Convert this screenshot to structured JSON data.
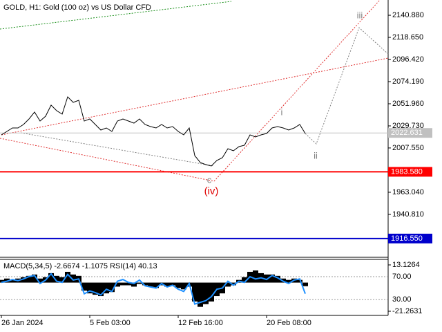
{
  "chart_data": [
    {
      "type": "line",
      "title": "GOLD, H1:  Gold (100 oz) vs US Dollar CFD",
      "categories": [
        "26 Jan 2024",
        null,
        null,
        null,
        null,
        null,
        null,
        null,
        null,
        null,
        null,
        null,
        null,
        null,
        null,
        null,
        "5 Feb 03:00",
        null,
        null,
        null,
        null,
        null,
        null,
        null,
        null,
        null,
        null,
        null,
        null,
        null,
        null,
        null,
        "12 Feb 16:00",
        null,
        null,
        null,
        null,
        null,
        null,
        null,
        null,
        null,
        null,
        null,
        null,
        null,
        null,
        null,
        "20 Feb 08:00",
        null,
        null,
        null,
        null,
        null,
        null,
        null
      ],
      "values": [
        2020.7,
        2024.17,
        2027.64,
        2027.64,
        2031.12,
        2036.67,
        2043.62,
        2034.59,
        2039.45,
        2050.57,
        2045.01,
        2041.54,
        2058.91,
        2053.35,
        2055.43,
        2034.59,
        2036.67,
        2031.12,
        2025.56,
        2027.64,
        2024.17,
        2034.59,
        2036.67,
        2034.59,
        2032.51,
        2036.67,
        2031.12,
        2029.03,
        2027.64,
        2031.12,
        2027.64,
        2029.03,
        2024.17,
        2020.7,
        2027.64,
        1999.86,
        1992.91,
        1990.82,
        1989.44,
        1994.99,
        1997.77,
        2006.8,
        2004.72,
        2008.89,
        2010.28,
        2020.7,
        2018.61,
        2020.7,
        2022.09,
        2027.64,
        2029.03,
        2027.64,
        2025.56,
        2027.64,
        2031.12,
        2022.09
      ],
      "color": "#000000",
      "ylim": [
        1897.7,
        2156.2
      ],
      "yticks": [
        {
          "value": 2140.88,
          "label": "2140.880"
        },
        {
          "value": 2118.65,
          "label": "2118.650"
        },
        {
          "value": 2096.42,
          "label": "2096.420"
        },
        {
          "value": 2074.19,
          "label": "2074.190"
        },
        {
          "value": 2051.96,
          "label": "2051.960"
        },
        {
          "value": 2029.73,
          "label": "2029.730"
        },
        {
          "value": 2007.55,
          "label": "2007.550"
        },
        {
          "value": 1963.04,
          "label": "1963.040"
        },
        {
          "value": 1940.81,
          "label": "1940.810"
        }
      ],
      "levels": [
        {
          "value": 1983.58,
          "label": "1983.580",
          "color": "#ff0000"
        },
        {
          "value": 1916.55,
          "label": "1916.550",
          "color": "#0000cc"
        }
      ],
      "last_price": {
        "value": 2022.631,
        "label": "2022.631",
        "color": "#c0c0c0"
      },
      "annotations": [
        {
          "text": "i",
          "color": "#808080"
        },
        {
          "text": "ii",
          "color": "#808080"
        },
        {
          "text": "iii",
          "color": "#808080"
        },
        {
          "text": "c",
          "color": "#808080"
        },
        {
          "text": "(iv)",
          "color": "#e00000"
        }
      ]
    },
    {
      "type": "bar",
      "title": "MACD(5,34,5) -2.6674 -1.1075 RSI(14) 40.13",
      "ylim": [
        -24.34,
        17.23
      ],
      "yticks": [
        13.1264,
        -21.2631
      ],
      "y2lim": [
        2.12,
        100.3
      ],
      "y2ticks": [
        {
          "value": 70,
          "label": "70.00"
        },
        {
          "value": 30,
          "label": "30.00"
        }
      ],
      "series": [
        {
          "color": "#000000",
          "values": [
            2,
            3,
            2,
            3,
            4,
            5,
            6,
            3,
            4,
            7,
            5,
            4,
            8,
            6,
            5,
            -6,
            -8,
            -9,
            -10,
            -8,
            -7,
            -3,
            -2,
            -2,
            -3,
            -1,
            -2,
            -3,
            -4,
            -2,
            -3,
            -2,
            -4,
            -5,
            -3,
            -14,
            -18,
            -16,
            -14,
            -10,
            -8,
            -3,
            -2,
            2,
            4,
            8,
            9,
            7,
            6,
            6,
            5,
            3,
            2,
            3,
            2,
            -2.6674
          ]
        },
        {
          "color": "#1e90ff",
          "axis": "y2",
          "values": [
            60,
            62,
            65,
            63,
            66,
            70,
            72,
            58,
            64,
            75,
            62,
            60,
            74,
            64,
            66,
            40,
            45,
            42,
            38,
            48,
            44,
            62,
            65,
            60,
            58,
            64,
            54,
            52,
            50,
            58,
            52,
            55,
            48,
            44,
            58,
            22,
            25,
            28,
            35,
            48,
            50,
            62,
            55,
            62,
            60,
            70,
            66,
            68,
            65,
            72,
            68,
            62,
            58,
            64,
            66,
            40.13
          ]
        }
      ]
    }
  ]
}
